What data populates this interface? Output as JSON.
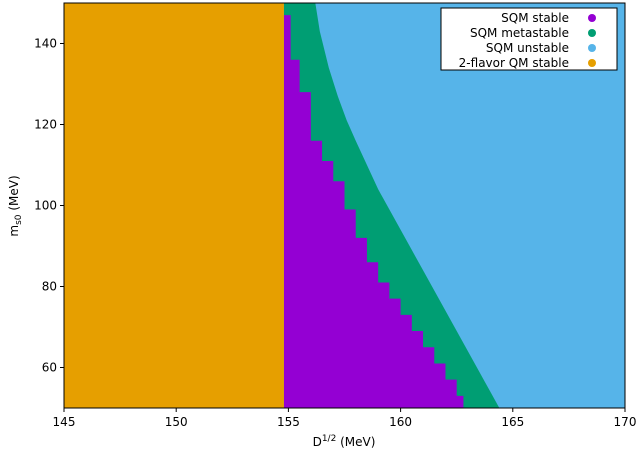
{
  "chart_data": {
    "type": "heatmap",
    "title": "",
    "xlabel": "D",
    "xlabel_sup": "1/2",
    "xlabel_unit": " (MeV)",
    "ylabel": "m",
    "ylabel_sub": "s0",
    "ylabel_unit": " (MeV)",
    "xlim": [
      145,
      170
    ],
    "ylim": [
      50,
      150
    ],
    "xticks": [
      145,
      150,
      155,
      160,
      165,
      170
    ],
    "yticks": [
      60,
      80,
      100,
      120,
      140
    ],
    "grid": false,
    "legend_position": "top-right",
    "series": [
      {
        "name": "SQM stable",
        "color": "#9400d3"
      },
      {
        "name": "SQM metastable",
        "color": "#009e73"
      },
      {
        "name": "SQM unstable",
        "color": "#56b4e9"
      },
      {
        "name": "2-flavor QM stable",
        "color": "#e69f00"
      }
    ],
    "regions": {
      "qm_stable_max_x": 154.8,
      "stable_metastable_boundary": [
        [
          154.8,
          150
        ],
        [
          154.8,
          147
        ],
        [
          155.1,
          136
        ],
        [
          155.5,
          128
        ],
        [
          156,
          116
        ],
        [
          156.5,
          111
        ],
        [
          157,
          106
        ],
        [
          157.5,
          99
        ],
        [
          158,
          92
        ],
        [
          158.5,
          86
        ],
        [
          159,
          81
        ],
        [
          159.5,
          77
        ],
        [
          160,
          73
        ],
        [
          160.5,
          69
        ],
        [
          161,
          65
        ],
        [
          161.5,
          61
        ],
        [
          162,
          57
        ],
        [
          162.5,
          53
        ],
        [
          162.8,
          50
        ]
      ],
      "metastable_unstable_boundary": [
        [
          156.2,
          150
        ],
        [
          156.4,
          143
        ],
        [
          156.8,
          134
        ],
        [
          157.2,
          127
        ],
        [
          157.6,
          121
        ],
        [
          158,
          116
        ],
        [
          158.5,
          110
        ],
        [
          159,
          104
        ],
        [
          159.5,
          99
        ],
        [
          160,
          94
        ],
        [
          160.5,
          89
        ],
        [
          161,
          84
        ],
        [
          161.5,
          79
        ],
        [
          162,
          74
        ],
        [
          162.5,
          69
        ],
        [
          163,
          64
        ],
        [
          163.5,
          59
        ],
        [
          164,
          54
        ],
        [
          164.4,
          50
        ]
      ]
    }
  }
}
